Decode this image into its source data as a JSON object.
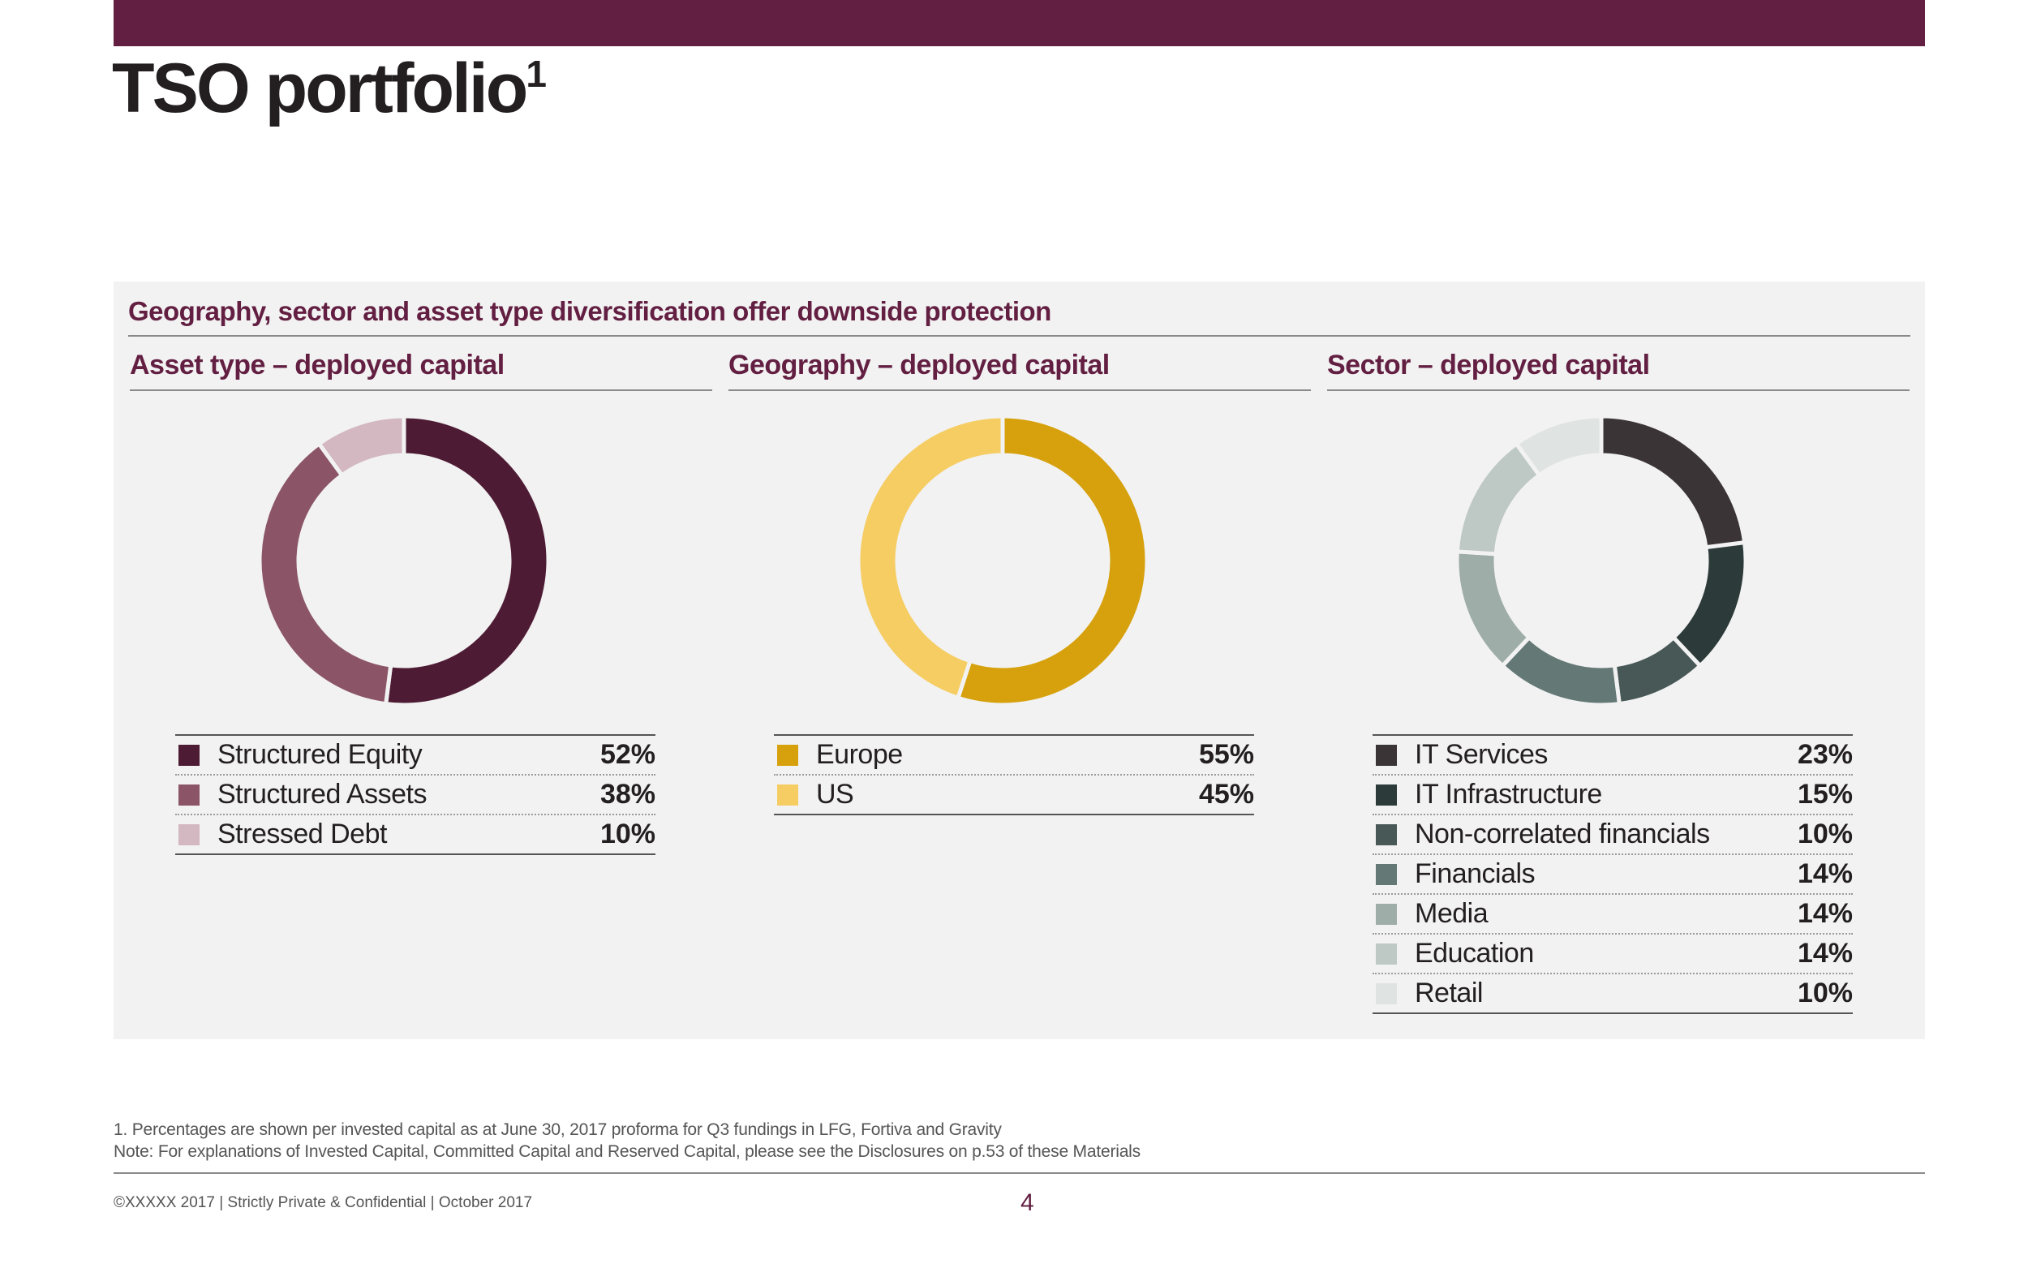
{
  "page": {
    "title": "TSO portfolio",
    "title_superscript": "1",
    "panel_heading": "Geography, sector and asset type diversification offer downside protection"
  },
  "chart_data": [
    {
      "type": "pie",
      "donut": true,
      "title": "Asset type – deployed capital",
      "categories": [
        "Structured Equity",
        "Structured Assets",
        "Stressed Debt"
      ],
      "values": [
        52,
        38,
        10
      ],
      "labels": [
        "52%",
        "38%",
        "10%"
      ],
      "colors": [
        "#4e1b34",
        "#8b5467",
        "#d3b7c1"
      ],
      "legend": "bottom"
    },
    {
      "type": "pie",
      "donut": true,
      "title": "Geography – deployed capital",
      "categories": [
        "Europe",
        "US"
      ],
      "values": [
        55,
        45
      ],
      "labels": [
        "55%",
        "45%"
      ],
      "colors": [
        "#d6a10d",
        "#f5cd63"
      ],
      "legend": "bottom"
    },
    {
      "type": "pie",
      "donut": true,
      "title": "Sector – deployed capital",
      "categories": [
        "IT Services",
        "IT Infrastructure",
        "Non-correlated financials",
        "Financials",
        "Media",
        "Education",
        "Retail"
      ],
      "values": [
        23,
        15,
        10,
        14,
        14,
        14,
        10
      ],
      "labels": [
        "23%",
        "15%",
        "10%",
        "14%",
        "14%",
        "14%",
        "10%"
      ],
      "colors": [
        "#3a3436",
        "#2c3a39",
        "#485857",
        "#647876",
        "#9fada9",
        "#bec8c5",
        "#dfe3e2"
      ],
      "legend": "bottom"
    }
  ],
  "footnotes": {
    "line1": "1. Percentages are shown per invested capital as at June 30, 2017 proforma for Q3 fundings in LFG, Fortiva and Gravity",
    "line2": "Note: For explanations of Invested Capital, Committed Capital and Reserved Capital, please see the Disclosures on p.53 of these Materials"
  },
  "footer": {
    "left": "©XXXXX 2017  |  Strictly Private & Confidential  |  October 2017",
    "page_number": "4"
  }
}
